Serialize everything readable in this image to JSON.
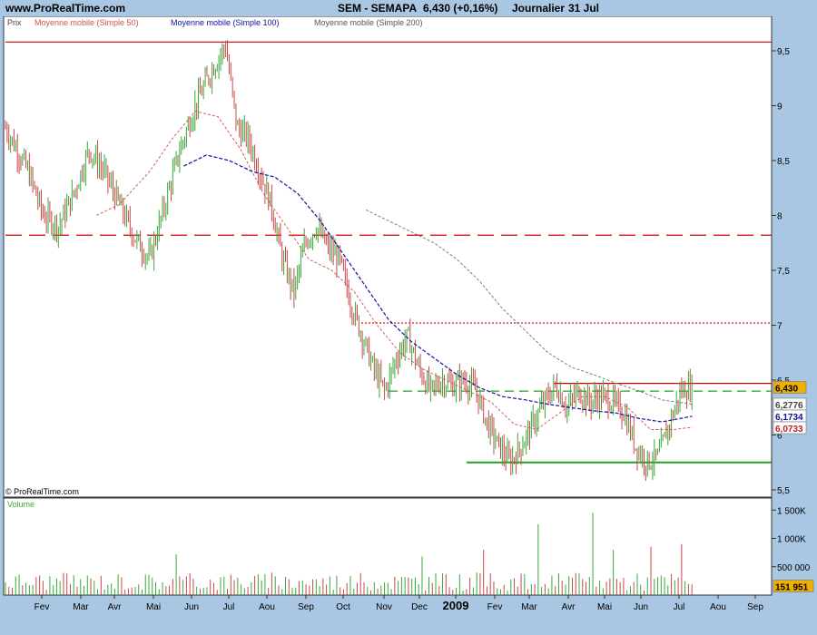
{
  "header": {
    "site": "www.ProRealTime.com",
    "title": "SEM - SEMAPA",
    "last": "6,430 (+0,16%)",
    "period": "Journalier",
    "date": "31 Jul"
  },
  "legend": {
    "price": "Prix",
    "ma50": "Moyenne mobile (Simple 50)",
    "ma100": "Moyenne mobile (Simple 100)",
    "ma200": "Moyenne mobile (Simple 200)"
  },
  "copyright": "© ProRealTime.com",
  "volume_label": "Volume",
  "colors": {
    "up": "#38a838",
    "down": "#c84848",
    "ma50": "#d05050",
    "ma100": "#1010a0",
    "ma200": "#707070",
    "resistance_red": "#cc0000",
    "support_green": "#22a022"
  },
  "chart_data": [
    {
      "type": "candlestick",
      "yaxis_ticks": [
        "9,5",
        "9",
        "8,5",
        "8",
        "7,5",
        "7",
        "6,5",
        "6",
        "5,5"
      ],
      "ylim": [
        5.5,
        9.7
      ],
      "xaxis_ticks": [
        "Fev",
        "Mar",
        "Avr",
        "Mai",
        "Jun",
        "Jul",
        "Aou",
        "Sep",
        "Oct",
        "Nov",
        "Dec",
        "2009",
        "Fev",
        "Mar",
        "Avr",
        "Mai",
        "Jun",
        "Jul",
        "Aou",
        "Sep"
      ],
      "price_path": [
        [
          0,
          8.8
        ],
        [
          6,
          8.4
        ],
        [
          10,
          8.0
        ],
        [
          14,
          7.9
        ],
        [
          18,
          8.2
        ],
        [
          22,
          8.6
        ],
        [
          26,
          8.4
        ],
        [
          30,
          8.1
        ],
        [
          34,
          7.8
        ],
        [
          38,
          7.6
        ],
        [
          42,
          8.1
        ],
        [
          46,
          8.6
        ],
        [
          50,
          9.0
        ],
        [
          54,
          9.3
        ],
        [
          58,
          9.55
        ],
        [
          61,
          8.8
        ],
        [
          64,
          8.7
        ],
        [
          67,
          8.4
        ],
        [
          70,
          8.1
        ],
        [
          73,
          7.6
        ],
        [
          76,
          7.3
        ],
        [
          79,
          7.75
        ],
        [
          82,
          7.9
        ],
        [
          85,
          7.7
        ],
        [
          88,
          7.6
        ],
        [
          91,
          7.2
        ],
        [
          94,
          6.9
        ],
        [
          97,
          6.6
        ],
        [
          100,
          6.4
        ],
        [
          103,
          6.7
        ],
        [
          106,
          6.9
        ],
        [
          109,
          6.6
        ],
        [
          112,
          6.4
        ],
        [
          115,
          6.5
        ],
        [
          118,
          6.45
        ],
        [
          121,
          6.5
        ],
        [
          124,
          6.4
        ],
        [
          127,
          6.1
        ],
        [
          130,
          5.9
        ],
        [
          133,
          5.75
        ],
        [
          136,
          5.9
        ],
        [
          139,
          6.1
        ],
        [
          142,
          6.3
        ],
        [
          145,
          6.45
        ],
        [
          148,
          6.25
        ],
        [
          151,
          6.4
        ],
        [
          154,
          6.3
        ],
        [
          157,
          6.35
        ],
        [
          160,
          6.3
        ],
        [
          163,
          6.2
        ],
        [
          166,
          5.9
        ],
        [
          169,
          5.75
        ],
        [
          172,
          5.8
        ],
        [
          175,
          6.1
        ],
        [
          178,
          6.4
        ],
        [
          181,
          6.43
        ]
      ],
      "ma50_path": [
        [
          24,
          8.0
        ],
        [
          30,
          8.1
        ],
        [
          38,
          8.4
        ],
        [
          44,
          8.7
        ],
        [
          50,
          8.95
        ],
        [
          56,
          8.9
        ],
        [
          62,
          8.6
        ],
        [
          68,
          8.2
        ],
        [
          74,
          7.9
        ],
        [
          80,
          7.6
        ],
        [
          86,
          7.5
        ],
        [
          92,
          7.3
        ],
        [
          98,
          7.0
        ],
        [
          104,
          6.75
        ],
        [
          110,
          6.6
        ],
        [
          116,
          6.5
        ],
        [
          122,
          6.4
        ],
        [
          128,
          6.3
        ],
        [
          134,
          6.1
        ],
        [
          140,
          6.05
        ],
        [
          146,
          6.2
        ],
        [
          152,
          6.35
        ],
        [
          158,
          6.35
        ],
        [
          164,
          6.25
        ],
        [
          170,
          6.05
        ],
        [
          176,
          6.05
        ],
        [
          181,
          6.07
        ]
      ],
      "ma100_path": [
        [
          47,
          8.45
        ],
        [
          53,
          8.55
        ],
        [
          59,
          8.5
        ],
        [
          65,
          8.4
        ],
        [
          71,
          8.35
        ],
        [
          77,
          8.2
        ],
        [
          83,
          7.95
        ],
        [
          89,
          7.65
        ],
        [
          95,
          7.35
        ],
        [
          101,
          7.05
        ],
        [
          107,
          6.85
        ],
        [
          113,
          6.7
        ],
        [
          119,
          6.55
        ],
        [
          125,
          6.43
        ],
        [
          131,
          6.35
        ],
        [
          137,
          6.32
        ],
        [
          143,
          6.28
        ],
        [
          149,
          6.25
        ],
        [
          155,
          6.22
        ],
        [
          161,
          6.2
        ],
        [
          167,
          6.15
        ],
        [
          173,
          6.12
        ],
        [
          181,
          6.17
        ]
      ],
      "ma200_path": [
        [
          95,
          8.05
        ],
        [
          101,
          7.95
        ],
        [
          107,
          7.85
        ],
        [
          113,
          7.75
        ],
        [
          119,
          7.6
        ],
        [
          125,
          7.4
        ],
        [
          131,
          7.15
        ],
        [
          137,
          6.95
        ],
        [
          143,
          6.75
        ],
        [
          149,
          6.62
        ],
        [
          155,
          6.55
        ],
        [
          161,
          6.47
        ],
        [
          167,
          6.4
        ],
        [
          173,
          6.32
        ],
        [
          181,
          6.28
        ]
      ],
      "price_labels": [
        "6,430",
        "6,2776",
        "6,1734",
        "6,0733"
      ],
      "price_label_values": [
        6.43,
        6.2776,
        6.1734,
        6.0733
      ],
      "hlines": [
        {
          "value": 9.58,
          "style": "solid",
          "color": "#cc0000"
        },
        {
          "value": 7.82,
          "style": "dashed",
          "color": "#cc0000"
        },
        {
          "value": 7.02,
          "style": "dotted",
          "color": "#cc0000"
        },
        {
          "value": 6.47,
          "style": "solid",
          "color": "#cc0000"
        },
        {
          "value": 6.4,
          "style": "dashed",
          "color": "#22a022"
        },
        {
          "value": 5.75,
          "style": "solid",
          "color": "#22a022"
        }
      ]
    },
    {
      "type": "bar",
      "name": "Volume",
      "yaxis_ticks": [
        "1 500K",
        "1 000K",
        "500 000"
      ],
      "ylim": [
        0,
        1600000
      ],
      "last_value": "151 951",
      "last_value_num": 151951
    }
  ]
}
